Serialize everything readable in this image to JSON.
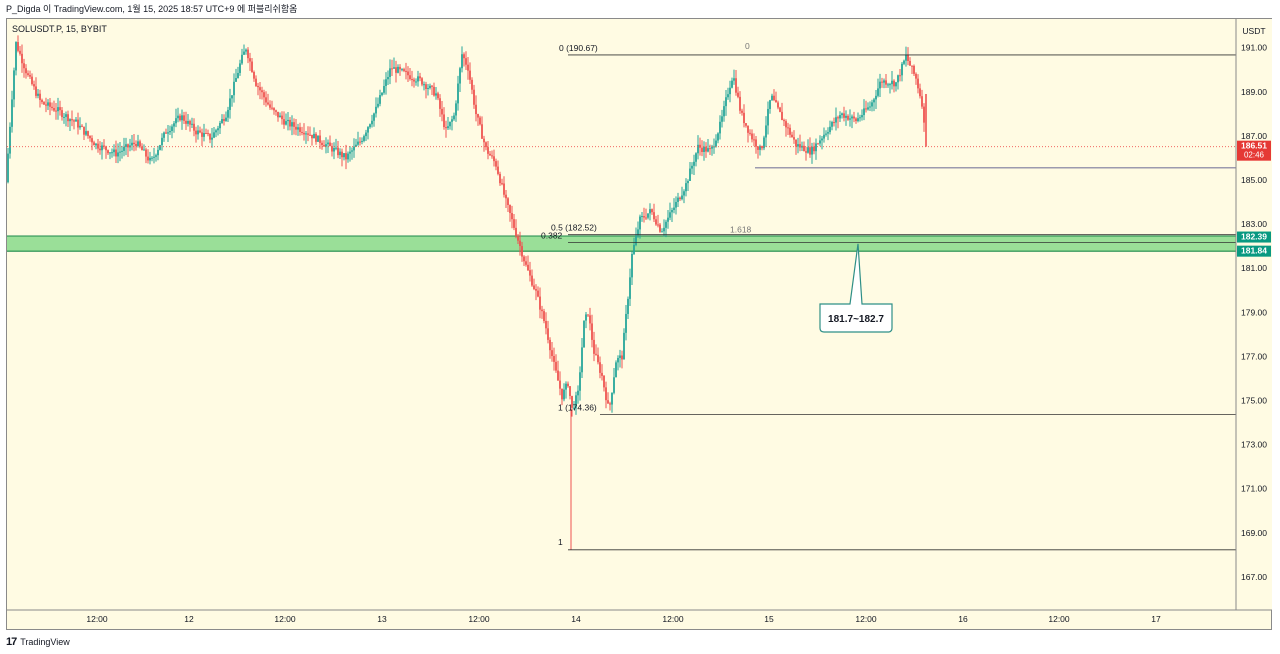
{
  "header": {
    "text": "P_Digda 이 TradingView.com, 1월 15, 2025 18:57 UTC+9 에 퍼블리쉬함옴"
  },
  "symbol": {
    "text": "SOLUSDT.P, 15, BYBIT"
  },
  "footer": {
    "logo": "17",
    "text": "TradingView"
  },
  "currency": "USDT",
  "colors": {
    "background": "#fffbe3",
    "up": "#26a69a",
    "down": "#ef5350",
    "zone": "#8fdc8f",
    "zone_border": "#1b8a4a",
    "last_price_bg": "#e53935",
    "tag_green": "#089981"
  },
  "chart_data": {
    "type": "candlestick",
    "x_ticks": [
      "12:00",
      "12",
      "12:00",
      "13",
      "12:00",
      "14",
      "12:00",
      "15",
      "12:00",
      "16",
      "12:00",
      "17"
    ],
    "y_ticks": [
      "191.00",
      "189.00",
      "187.00",
      "185.00",
      "183.00",
      "181.00",
      "179.00",
      "177.00",
      "175.00",
      "173.00",
      "171.00",
      "169.00",
      "167.00"
    ],
    "ylim": [
      165.5,
      192.3
    ],
    "price_path": [
      [
        0,
        184.9
      ],
      [
        6,
        188.8
      ],
      [
        10,
        191.2
      ],
      [
        22,
        189.7
      ],
      [
        35,
        188.5
      ],
      [
        50,
        188.2
      ],
      [
        70,
        187.6
      ],
      [
        90,
        186.6
      ],
      [
        110,
        186.2
      ],
      [
        130,
        186.7
      ],
      [
        145,
        185.8
      ],
      [
        160,
        187.2
      ],
      [
        175,
        187.9
      ],
      [
        190,
        187.2
      ],
      [
        205,
        186.9
      ],
      [
        220,
        188.0
      ],
      [
        235,
        190.4
      ],
      [
        240,
        191.0
      ],
      [
        250,
        189.4
      ],
      [
        265,
        188.2
      ],
      [
        280,
        187.6
      ],
      [
        300,
        187.2
      ],
      [
        320,
        186.6
      ],
      [
        340,
        186.0
      ],
      [
        355,
        186.8
      ],
      [
        370,
        188.2
      ],
      [
        385,
        190.1
      ],
      [
        400,
        189.8
      ],
      [
        415,
        189.5
      ],
      [
        430,
        188.9
      ],
      [
        440,
        187.2
      ],
      [
        448,
        187.9
      ],
      [
        456,
        190.7
      ],
      [
        462,
        190.1
      ],
      [
        470,
        188.0
      ],
      [
        480,
        186.4
      ],
      [
        490,
        185.7
      ],
      [
        500,
        184.0
      ],
      [
        510,
        182.6
      ],
      [
        520,
        181.1
      ],
      [
        530,
        179.9
      ],
      [
        540,
        178.3
      ],
      [
        548,
        176.6
      ],
      [
        556,
        175.2
      ],
      [
        562,
        175.8
      ],
      [
        566,
        174.6
      ],
      [
        572,
        175.3
      ],
      [
        578,
        178.5
      ],
      [
        582,
        179.0
      ],
      [
        588,
        177.2
      ],
      [
        596,
        176.1
      ],
      [
        603,
        174.5
      ],
      [
        610,
        176.8
      ],
      [
        616,
        177.0
      ],
      [
        620,
        178.8
      ],
      [
        626,
        181.6
      ],
      [
        634,
        183.2
      ],
      [
        645,
        183.6
      ],
      [
        655,
        182.7
      ],
      [
        665,
        183.5
      ],
      [
        680,
        184.8
      ],
      [
        692,
        186.5
      ],
      [
        705,
        186.3
      ],
      [
        715,
        187.6
      ],
      [
        722,
        189.0
      ],
      [
        727,
        189.8
      ],
      [
        735,
        188.0
      ],
      [
        745,
        187.0
      ],
      [
        755,
        186.3
      ],
      [
        765,
        188.8
      ],
      [
        775,
        187.9
      ],
      [
        790,
        186.6
      ],
      [
        805,
        186.3
      ],
      [
        820,
        187.2
      ],
      [
        835,
        188.0
      ],
      [
        850,
        187.7
      ],
      [
        865,
        188.4
      ],
      [
        875,
        189.5
      ],
      [
        890,
        189.4
      ],
      [
        900,
        190.6
      ],
      [
        910,
        189.6
      ],
      [
        916,
        188.5
      ],
      [
        920,
        186.5
      ]
    ],
    "last_price": {
      "value": 186.51,
      "label": "186.51",
      "countdown": "02:46"
    },
    "zone": {
      "from": 181.84,
      "to": 182.39,
      "label_high": "182.39",
      "label_low": "181.84"
    },
    "fibonacci": [
      {
        "label": "0 (190.67)",
        "value": 190.67
      },
      {
        "label": "0.5 (182.52)",
        "value": 182.52
      },
      {
        "label": "0.382",
        "value": 182.17
      },
      {
        "label": "1 (174.36)",
        "value": 174.36
      }
    ],
    "extension": [
      {
        "label": "0",
        "value": 190.67
      },
      {
        "label": "1.618",
        "value": 182.39
      },
      {
        "label": "1",
        "value": 168.23
      }
    ],
    "support_line": 185.55,
    "callout": {
      "text": "181.7~182.7",
      "target": 182.15
    }
  }
}
